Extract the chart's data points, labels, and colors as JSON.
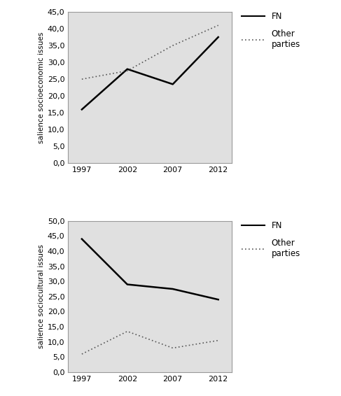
{
  "years": [
    1997,
    2002,
    2007,
    2012
  ],
  "top": {
    "FN": [
      16.0,
      28.0,
      23.5,
      37.5
    ],
    "Other": [
      25.0,
      27.5,
      35.0,
      41.0
    ],
    "ylabel": "salience socioeconomic issues",
    "ylim": [
      0,
      45
    ],
    "yticks": [
      0.0,
      5.0,
      10.0,
      15.0,
      20.0,
      25.0,
      30.0,
      35.0,
      40.0,
      45.0
    ]
  },
  "bottom": {
    "FN": [
      44.0,
      29.0,
      27.5,
      24.0
    ],
    "Other": [
      6.0,
      13.5,
      8.0,
      10.5
    ],
    "ylabel": "salience sociocultural issues",
    "ylim": [
      0,
      50
    ],
    "yticks": [
      0.0,
      5.0,
      10.0,
      15.0,
      20.0,
      25.0,
      30.0,
      35.0,
      40.0,
      45.0,
      50.0
    ]
  },
  "fn_color": "#000000",
  "other_color": "#555555",
  "bg_color": "#e0e0e0",
  "fig_bg_color": "#ffffff",
  "fn_label": "FN",
  "other_label": "Other\nparties",
  "fn_linestyle": "solid",
  "fn_linewidth": 1.8,
  "other_linewidth": 1.2,
  "tick_label_fontsize": 8,
  "axis_label_fontsize": 7.5,
  "legend_fontsize": 8.5
}
